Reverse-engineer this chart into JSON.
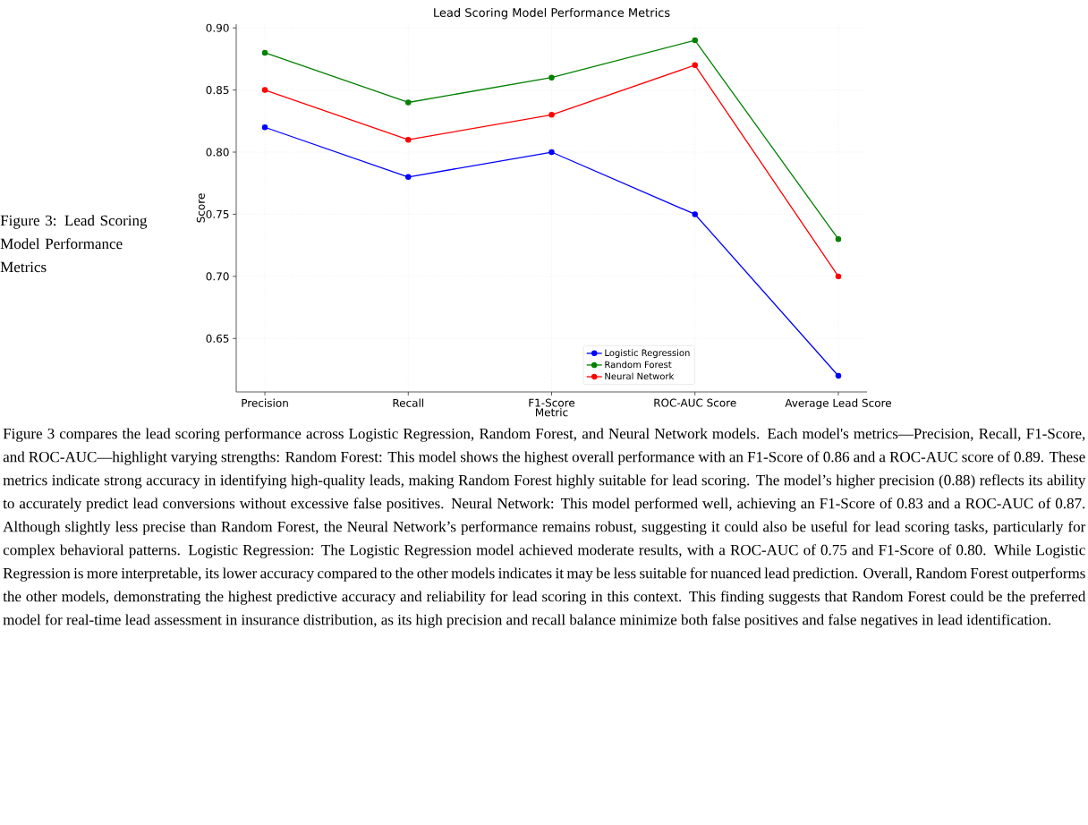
{
  "chart_data": {
    "type": "line",
    "title": "Lead Scoring Model Performance Metrics",
    "xlabel": "Metric",
    "ylabel": "Score",
    "categories": [
      "Precision",
      "Recall",
      "F1-Score",
      "ROC-AUC Score",
      "Average Lead Score"
    ],
    "series": [
      {
        "name": "Logistic Regression",
        "color": "#0000ff",
        "values": [
          0.82,
          0.78,
          0.8,
          0.75,
          0.62
        ]
      },
      {
        "name": "Random Forest",
        "color": "#008000",
        "values": [
          0.88,
          0.84,
          0.86,
          0.89,
          0.73
        ]
      },
      {
        "name": "Neural Network",
        "color": "#ff0000",
        "values": [
          0.85,
          0.81,
          0.83,
          0.87,
          0.7
        ]
      }
    ],
    "ylim": [
      0.607,
      0.903
    ],
    "yticks": [
      0.65,
      {
        "value": 0.7,
        "label": "0.70"
      },
      0.75,
      {
        "value": 0.8,
        "label": "0.80"
      },
      0.85,
      {
        "value": 0.9,
        "label": "0.90"
      }
    ],
    "grid": true,
    "legend": "bottom right",
    "marker": "circle",
    "line_style": "solid",
    "annotations": [
      "Figure 3: Lead Scoring Model Performance Metrics",
      "Figure 3 compares the lead scoring performance across Logistic Regression, Random Forest, and Neural Network models. Each model's metrics—Precision, Recall, F1-Score, and ROC-AUC—highlight varying strengths: Random Forest: This model shows the highest overall performance with an F1-Score of 0.86 and a ROC-AUC score of 0.89. These metrics indicate strong accuracy in identifying high-quality leads, making Random Forest highly suitable for lead scoring. The model’s higher precision (0.88) reflects its ability to accurately predict lead conversions without excessive false positives. Neural Network: This model performed well, achieving an F1-Score of 0.83 and a ROC-AUC of 0.87. Although slightly less precise than Random Forest, the Neural Network’s performance remains robust, suggesting it could also be useful for lead scoring tasks, particularly for complex behavioral patterns. Logistic Regression: The Logistic Regression model achieved moderate results, with a ROC-AUC of 0.75 and F1-Score of 0.80. While Logistic Regression is more interpretable, its lower accuracy compared to the other models indicates it may be less suitable for nuanced lead prediction. Overall, Random Forest outperforms the other models, demonstrating the highest predictive accuracy and reliability for lead scoring in this context. This finding suggests that Random Forest could be the preferred model for real-time lead assessment in insurance distribution, as its high precision and recall balance minimize both false positives and false negatives in lead identification."
    ]
  }
}
